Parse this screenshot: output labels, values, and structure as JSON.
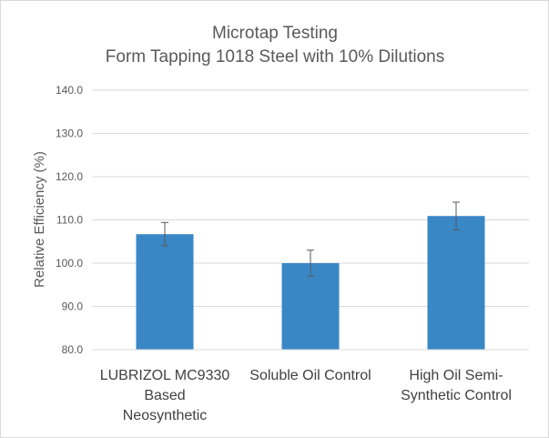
{
  "chart_data": {
    "type": "bar",
    "title": [
      "Microtap Testing",
      "Form Tapping 1018 Steel with 10% Dilutions"
    ],
    "xlabel": "",
    "ylabel": "Relative Efficiency (%)",
    "ylim": [
      80,
      140
    ],
    "yticks": [
      "80.0",
      "90.0",
      "100.0",
      "110.0",
      "120.0",
      "130.0",
      "140.0"
    ],
    "categories": [
      [
        "LUBRIZOL MC9330",
        "Based",
        "Neosynthetic"
      ],
      [
        "Soluble Oil Control"
      ],
      [
        "High Oil Semi-",
        "Synthetic Control"
      ]
    ],
    "values": [
      106.7,
      100.0,
      110.9
    ],
    "error_bars": [
      2.7,
      3.0,
      3.2
    ],
    "grid": true,
    "legend": "none",
    "bar_color": "#3a87c6",
    "grid_color": "#d9d9d9",
    "error_color": "#595959"
  }
}
